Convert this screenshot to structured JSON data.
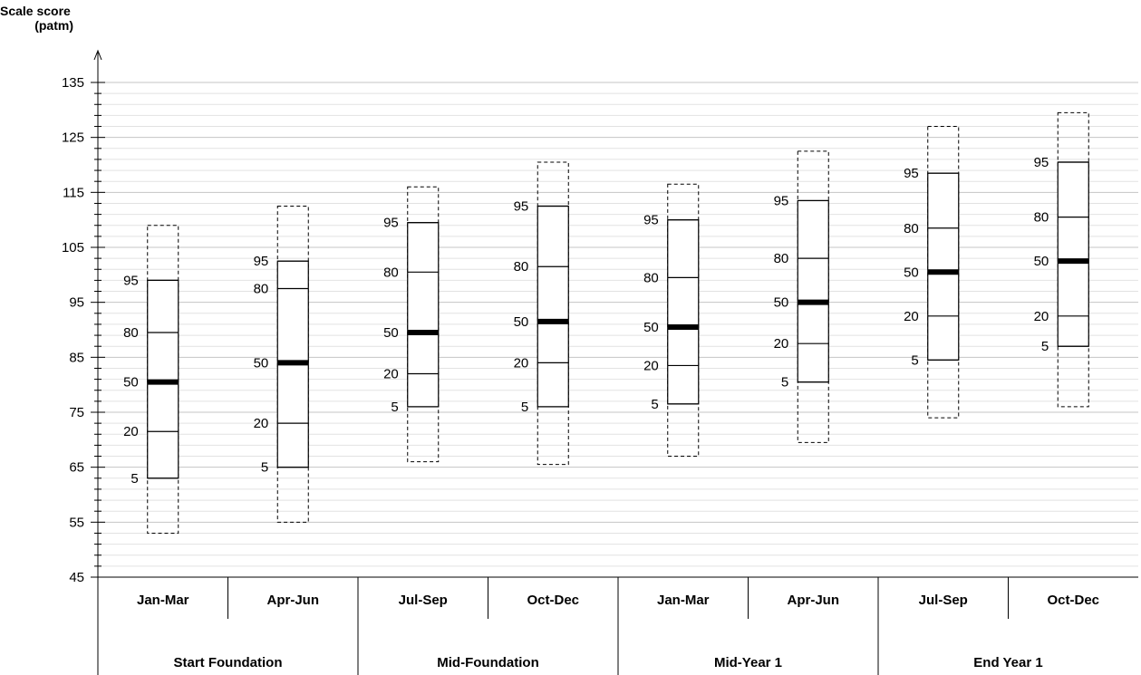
{
  "chart_data": {
    "type": "box",
    "ylabel_line1": "Scale score",
    "ylabel_line2": "(patm)",
    "ylim": [
      45,
      135
    ],
    "y_major_ticks": [
      45,
      55,
      65,
      75,
      85,
      95,
      105,
      115,
      125,
      135
    ],
    "y_minor_step": 2,
    "grid": "horizontal",
    "percentile_labels": [
      "5",
      "20",
      "50",
      "80",
      "95"
    ],
    "categories": [
      "Jan-Mar",
      "Apr-Jun",
      "Jul-Sep",
      "Oct-Dec",
      "Jan-Mar",
      "Apr-Jun",
      "Jul-Sep",
      "Oct-Dec"
    ],
    "groups": [
      {
        "label": "Start Foundation",
        "categories": [
          0,
          1
        ]
      },
      {
        "label": "Mid-Foundation",
        "categories": [
          2,
          3
        ]
      },
      {
        "label": "Mid-Year 1",
        "categories": [
          4,
          5
        ]
      },
      {
        "label": "End Year 1",
        "categories": [
          6,
          7
        ]
      }
    ],
    "boxes": [
      {
        "category": "Jan-Mar",
        "outer_min": 53,
        "outer_max": 109,
        "p5": 63,
        "p20": 71.5,
        "p50": 80.5,
        "p80": 89.5,
        "p95": 99
      },
      {
        "category": "Apr-Jun",
        "outer_min": 55,
        "outer_max": 112.5,
        "p5": 65,
        "p20": 73,
        "p50": 84,
        "p80": 97.5,
        "p95": 102.5
      },
      {
        "category": "Jul-Sep",
        "outer_min": 66,
        "outer_max": 116,
        "p5": 76,
        "p20": 82,
        "p50": 89.5,
        "p80": 100.5,
        "p95": 109.5
      },
      {
        "category": "Oct-Dec",
        "outer_min": 65.5,
        "outer_max": 120.5,
        "p5": 76,
        "p20": 84,
        "p50": 91.5,
        "p80": 101.5,
        "p95": 112.5
      },
      {
        "category": "Jan-Mar",
        "outer_min": 67,
        "outer_max": 116.5,
        "p5": 76.5,
        "p20": 83.5,
        "p50": 90.5,
        "p80": 99.5,
        "p95": 110
      },
      {
        "category": "Apr-Jun",
        "outer_min": 69.5,
        "outer_max": 122.5,
        "p5": 80.5,
        "p20": 87.5,
        "p50": 95,
        "p80": 103,
        "p95": 113.5
      },
      {
        "category": "Jul-Sep",
        "outer_min": 74,
        "outer_max": 127,
        "p5": 84.5,
        "p20": 92.5,
        "p50": 100.5,
        "p80": 108.5,
        "p95": 118.5
      },
      {
        "category": "Oct-Dec",
        "outer_min": 76,
        "outer_max": 129.5,
        "p5": 87,
        "p20": 92.5,
        "p50": 102.5,
        "p80": 110.5,
        "p95": 120.5
      }
    ]
  }
}
